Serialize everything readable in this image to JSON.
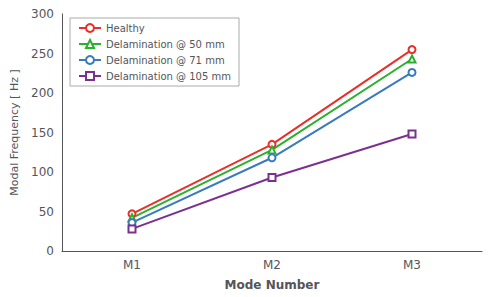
{
  "chart_data": {
    "type": "line",
    "categories": [
      "M1",
      "M2",
      "M3"
    ],
    "series": [
      {
        "name": "Healthy",
        "color": "#e8302a",
        "marker": "circle",
        "values": [
          47,
          135,
          255
        ]
      },
      {
        "name": "Delamination @ 50 mm",
        "color": "#2db02d",
        "marker": "triangle",
        "values": [
          42,
          128,
          243
        ]
      },
      {
        "name": "Delamination @ 71 mm",
        "color": "#3a7abf",
        "marker": "circle",
        "values": [
          36,
          118,
          226
        ]
      },
      {
        "name": "Delamination @ 105 mm",
        "color": "#7b3090",
        "marker": "square",
        "values": [
          28,
          93,
          148
        ]
      }
    ],
    "xlabel": "Mode Number",
    "ylabel": "Modal Frequency [ Hz ]",
    "ylim": [
      0,
      300
    ],
    "yticks": [
      0,
      50,
      100,
      150,
      200,
      250,
      300
    ],
    "grid": false,
    "legend": "upper left"
  }
}
